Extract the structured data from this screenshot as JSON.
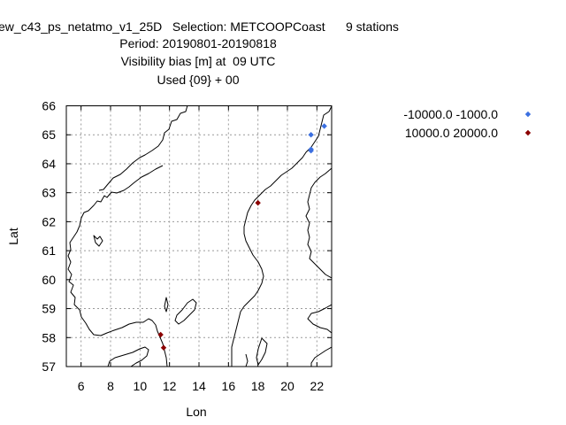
{
  "chart_data": {
    "type": "scatter",
    "title_lines": [
      "ew_c43_ps_netatmo_v1_25D   Selection: METCOOPCoast      9 stations",
      "Period: 20190801-20190818",
      "Visibility bias [m] at  09 UTC",
      "Used {09} + 00"
    ],
    "xlabel": "Lon",
    "ylabel": "Lat",
    "xlim": [
      5,
      23
    ],
    "ylim": [
      57,
      66
    ],
    "xticks": [
      6,
      8,
      10,
      12,
      14,
      16,
      18,
      20,
      22
    ],
    "yticks": [
      57,
      58,
      59,
      60,
      61,
      62,
      63,
      64,
      65,
      66
    ],
    "grid": true,
    "legend_position": "top-right, outside plot",
    "series": [
      {
        "name": "-10000.0 -1000.0",
        "color": "#3b6fe0",
        "marker": "diamond",
        "points": [
          {
            "x": 21.6,
            "y": 65.0
          },
          {
            "x": 22.5,
            "y": 65.3
          },
          {
            "x": 21.6,
            "y": 64.5
          },
          {
            "x": 21.6,
            "y": 64.45
          }
        ]
      },
      {
        "name": "10000.0 20000.0",
        "color": "#8b0000",
        "marker": "diamond",
        "points": [
          {
            "x": 18.0,
            "y": 62.65
          },
          {
            "x": 11.4,
            "y": 58.1
          },
          {
            "x": 11.6,
            "y": 57.65
          }
        ]
      }
    ]
  }
}
